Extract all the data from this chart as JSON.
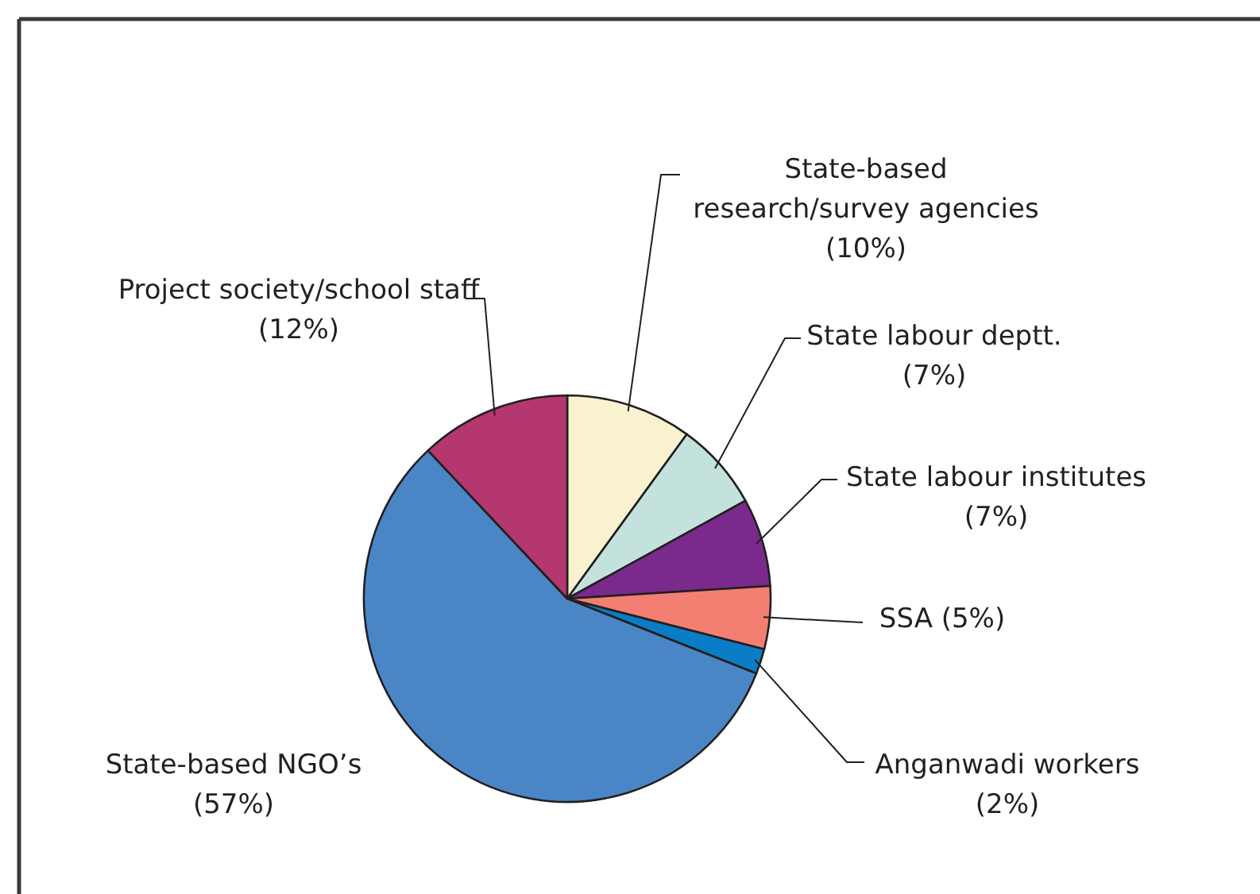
{
  "chart_data": {
    "type": "pie",
    "categories": [
      "State-based research/survey agencies",
      "State labour deptt.",
      "State labour institutes",
      "SSA",
      "Anganwadi workers",
      "State-based NGO’s",
      "Project society/school staff"
    ],
    "values": [
      10,
      7,
      7,
      5,
      2,
      57,
      12
    ],
    "value_labels": [
      "(10%)",
      "(7%)",
      "(7%)",
      "(5%)",
      "(2%)",
      "(57%)",
      "(12%)"
    ],
    "colors": [
      "#f8f2cf",
      "#c3e2de",
      "#7a2a8c",
      "#f37f73",
      "#0a7dc6",
      "#4a86c6",
      "#b43770"
    ]
  }
}
